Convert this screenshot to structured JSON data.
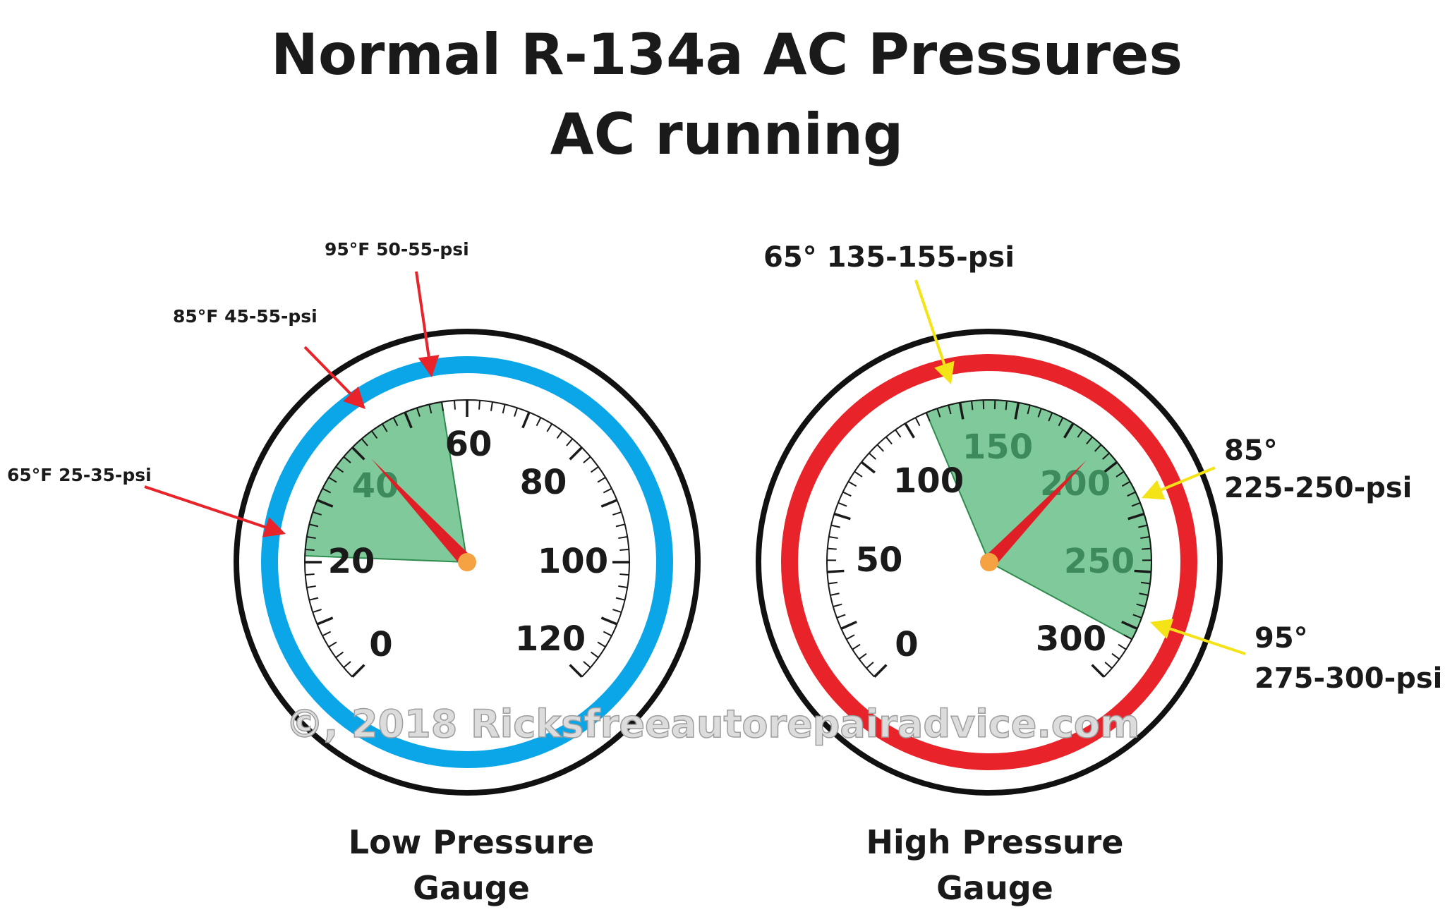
{
  "title": {
    "line1": "Normal R-134a AC Pressures",
    "line2": "AC running"
  },
  "watermark": "©, 2018 Ricksfreeautorepairadvice.com",
  "colors": {
    "low_ring": "#0aa6e8",
    "high_ring": "#e8232a",
    "normal_zone": "#80c99a",
    "needle": "#e01e26",
    "hub": "#f5a243",
    "low_callout_arrow": "#e8232a",
    "high_callout_arrow": "#f4e417"
  },
  "gauges": [
    {
      "id": "low",
      "caption_line1": "Low Pressure",
      "caption_line2": "Gauge",
      "ring_color": "#0aa6e8",
      "scale_min": 0,
      "scale_max": 120,
      "scale_labels": [
        "0",
        "20",
        "40",
        "60",
        "80",
        "100",
        "120"
      ],
      "zone_labels": [
        "40"
      ],
      "normal_range": [
        21,
        56
      ],
      "needle_value": 41,
      "callouts": [
        {
          "text": "65°F 25-35-psi"
        },
        {
          "text": "85°F 45-55-psi"
        },
        {
          "text": "95°F 50-55-psi"
        }
      ]
    },
    {
      "id": "high",
      "caption_line1": "High Pressure",
      "caption_line2": "Gauge",
      "ring_color": "#e8232a",
      "scale_min": 0,
      "scale_max": 325,
      "scale_labels": [
        "0",
        "50",
        "100",
        "300"
      ],
      "zone_labels": [
        "150",
        "200",
        "250"
      ],
      "normal_range": [
        135,
        305
      ],
      "needle_value": 215,
      "callouts": [
        {
          "text": "65° 135-155-psi"
        },
        {
          "line1": "85°",
          "line2": "225-250-psi"
        },
        {
          "line1": "95°",
          "line2": "275-300-psi"
        }
      ]
    }
  ]
}
